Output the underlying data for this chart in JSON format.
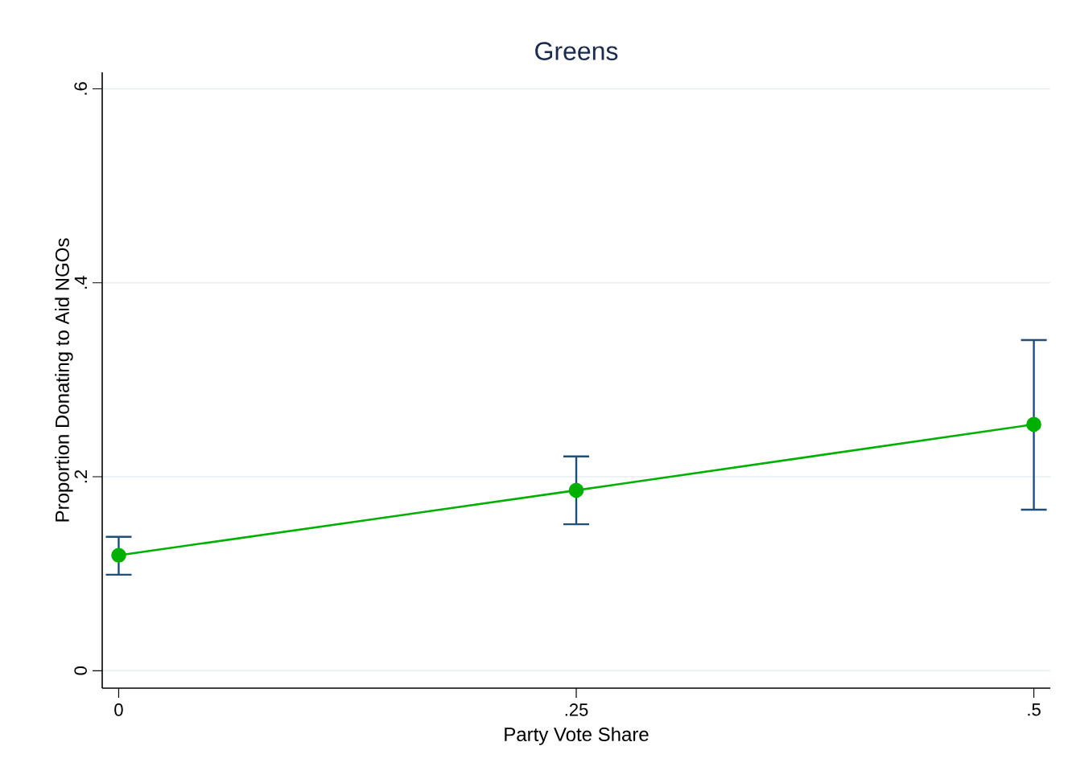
{
  "chart_data": {
    "type": "line",
    "title": "Greens",
    "xlabel": "Party Vote Share",
    "ylabel": "Proportion Donating to Aid NGOs",
    "x": [
      0,
      0.25,
      0.5
    ],
    "series": [
      {
        "color": "#00b000",
        "values": [
          0.119,
          0.186,
          0.254
        ],
        "errors": [
          [
            0.099,
            0.138
          ],
          [
            0.151,
            0.221
          ],
          [
            0.166,
            0.341
          ]
        ]
      }
    ],
    "xlim": [
      -0.009,
      0.509
    ],
    "ylim": [
      -0.018,
      0.617
    ],
    "xticks": [
      0,
      {
        "value": 0.25,
        "label": ".25"
      },
      {
        "value": 0.5,
        "label": ".5"
      }
    ],
    "yticks": [
      0,
      {
        "value": 0.2,
        "label": ".2"
      },
      {
        "value": 0.4,
        "label": ".4"
      },
      {
        "value": 0.6,
        "label": ".6"
      }
    ],
    "grid": "y",
    "marker": "circle",
    "line_style": "solid"
  }
}
